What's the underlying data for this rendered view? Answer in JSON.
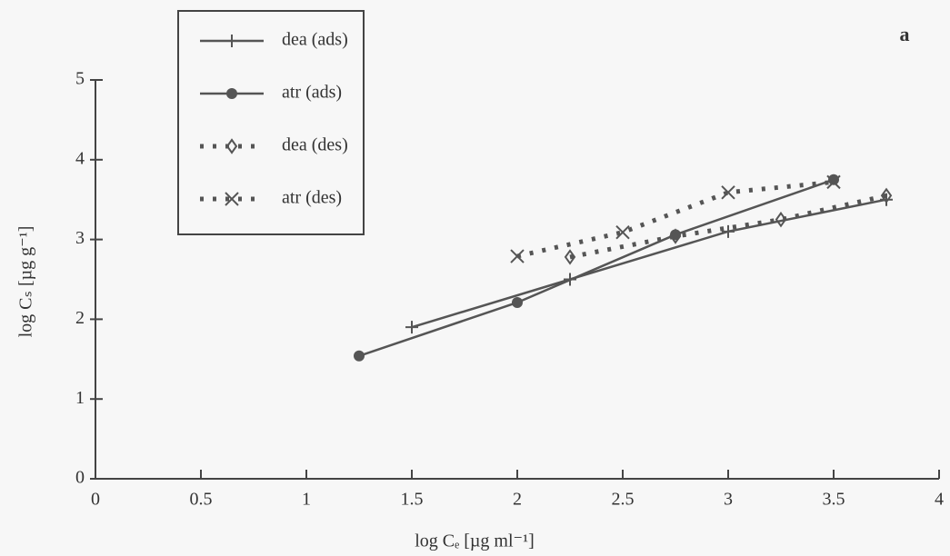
{
  "chart_data": {
    "type": "line",
    "xlabel": "log Cₑ [µg ml⁻¹]",
    "ylabel": "log Cₛ [µg g⁻¹]",
    "annotation": "a",
    "xlim": [
      0,
      4
    ],
    "xticks": [
      0,
      0.5,
      1,
      1.5,
      2,
      2.5,
      3,
      3.5,
      4
    ],
    "ylim": [
      0,
      5
    ],
    "yticks": [
      0,
      1,
      2,
      3,
      4,
      5
    ],
    "legend": "upper left",
    "series": [
      {
        "name": "dea (ads)",
        "color": "#555555",
        "dash": "solid",
        "marker": "plus",
        "x": [
          1.5,
          2.25,
          3.0,
          3.75
        ],
        "values": [
          1.9,
          2.5,
          3.1,
          3.5
        ]
      },
      {
        "name": "atr (ads)",
        "color": "#555555",
        "dash": "solid",
        "marker": "circle",
        "x": [
          1.25,
          2.0,
          2.75,
          3.5
        ],
        "values": [
          1.54,
          2.21,
          3.06,
          3.75
        ]
      },
      {
        "name": "dea (des)",
        "color": "#555555",
        "dash": "dotted",
        "marker": "diamond",
        "x": [
          2.25,
          2.75,
          3.25,
          3.75
        ],
        "values": [
          2.78,
          3.04,
          3.25,
          3.55
        ]
      },
      {
        "name": "atr (des)",
        "color": "#555555",
        "dash": "dotted",
        "marker": "cross",
        "x": [
          2.0,
          2.5,
          3.0,
          3.5
        ],
        "values": [
          2.79,
          3.09,
          3.59,
          3.72
        ]
      }
    ]
  }
}
